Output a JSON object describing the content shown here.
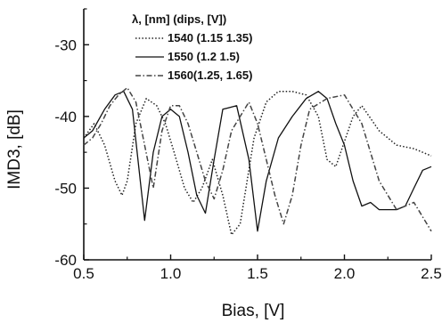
{
  "chart_data": {
    "type": "line",
    "xlabel": "Bias, [V]",
    "ylabel": "IMD3, [dB]",
    "xlim": [
      0.5,
      2.5
    ],
    "ylim": [
      -60,
      -25
    ],
    "xticks": [
      0.5,
      1.0,
      1.5,
      2.0,
      2.5
    ],
    "xtick_labels": [
      "0.5",
      "1.0",
      "1.5",
      "2.0",
      "2.5"
    ],
    "yticks": [
      -60,
      -50,
      -40,
      -30
    ],
    "ytick_labels": [
      "-60",
      "-50",
      "-40",
      "-30"
    ],
    "grid": false,
    "legend_position": "top-center",
    "legend_title": "λ, [nm] (dips, [V])",
    "series": [
      {
        "name": "1540 (1.15 1.35)",
        "style": "dotted",
        "color": "#222222",
        "x": [
          0.5,
          0.56,
          0.62,
          0.68,
          0.72,
          0.75,
          0.8,
          0.86,
          0.92,
          0.97,
          1.02,
          1.08,
          1.13,
          1.18,
          1.24,
          1.3,
          1.35,
          1.4,
          1.48,
          1.55,
          1.62,
          1.7,
          1.78,
          1.85,
          1.9,
          1.95,
          2.0,
          2.05,
          2.1,
          2.2,
          2.3,
          2.4,
          2.5
        ],
        "y": [
          -43,
          -41,
          -44,
          -49,
          -51,
          -49,
          -41,
          -37.5,
          -38.5,
          -41,
          -45,
          -50,
          -52,
          -50,
          -46,
          -51,
          -56.5,
          -55,
          -43,
          -38,
          -36.5,
          -36.5,
          -37,
          -40,
          -46,
          -47,
          -43.5,
          -40,
          -38.5,
          -42,
          -44,
          -44.5,
          -45.5
        ]
      },
      {
        "name": "1550 (1.2 1.5)",
        "style": "solid",
        "color": "#111111",
        "x": [
          0.5,
          0.55,
          0.62,
          0.68,
          0.73,
          0.78,
          0.85,
          0.9,
          0.95,
          1.0,
          1.05,
          1.1,
          1.15,
          1.2,
          1.25,
          1.3,
          1.38,
          1.45,
          1.5,
          1.55,
          1.62,
          1.7,
          1.78,
          1.85,
          1.9,
          1.95,
          2.0,
          2.05,
          2.1,
          2.15,
          2.2,
          2.3,
          2.35,
          2.4,
          2.45,
          2.5
        ],
        "y": [
          -43,
          -42,
          -39,
          -37,
          -36.5,
          -39,
          -54.5,
          -45,
          -40,
          -39,
          -40,
          -45,
          -51,
          -53.5,
          -46,
          -39,
          -38.5,
          -46,
          -56,
          -49,
          -43,
          -40,
          -37.5,
          -36.5,
          -37.5,
          -41,
          -44,
          -49,
          -52.5,
          -52,
          -53,
          -53,
          -52.5,
          -50,
          -47.5,
          -47
        ]
      },
      {
        "name": "1560(1.25, 1.65)",
        "style": "dash-dot",
        "color": "#444444",
        "x": [
          0.5,
          0.55,
          0.6,
          0.65,
          0.7,
          0.75,
          0.8,
          0.85,
          0.9,
          0.95,
          1.0,
          1.05,
          1.1,
          1.15,
          1.2,
          1.25,
          1.3,
          1.35,
          1.4,
          1.45,
          1.5,
          1.55,
          1.6,
          1.65,
          1.7,
          1.75,
          1.8,
          1.9,
          2.0,
          2.1,
          2.2,
          2.3,
          2.4,
          2.5
        ],
        "y": [
          -44,
          -43,
          -41,
          -38.5,
          -37,
          -36,
          -38,
          -44,
          -50,
          -42,
          -38.5,
          -38.5,
          -41,
          -45,
          -49,
          -51.5,
          -47.5,
          -42,
          -40,
          -38,
          -41,
          -46,
          -51,
          -55,
          -51,
          -44,
          -39,
          -37.5,
          -37,
          -41,
          -49,
          -53,
          -52,
          -56
        ]
      }
    ]
  }
}
